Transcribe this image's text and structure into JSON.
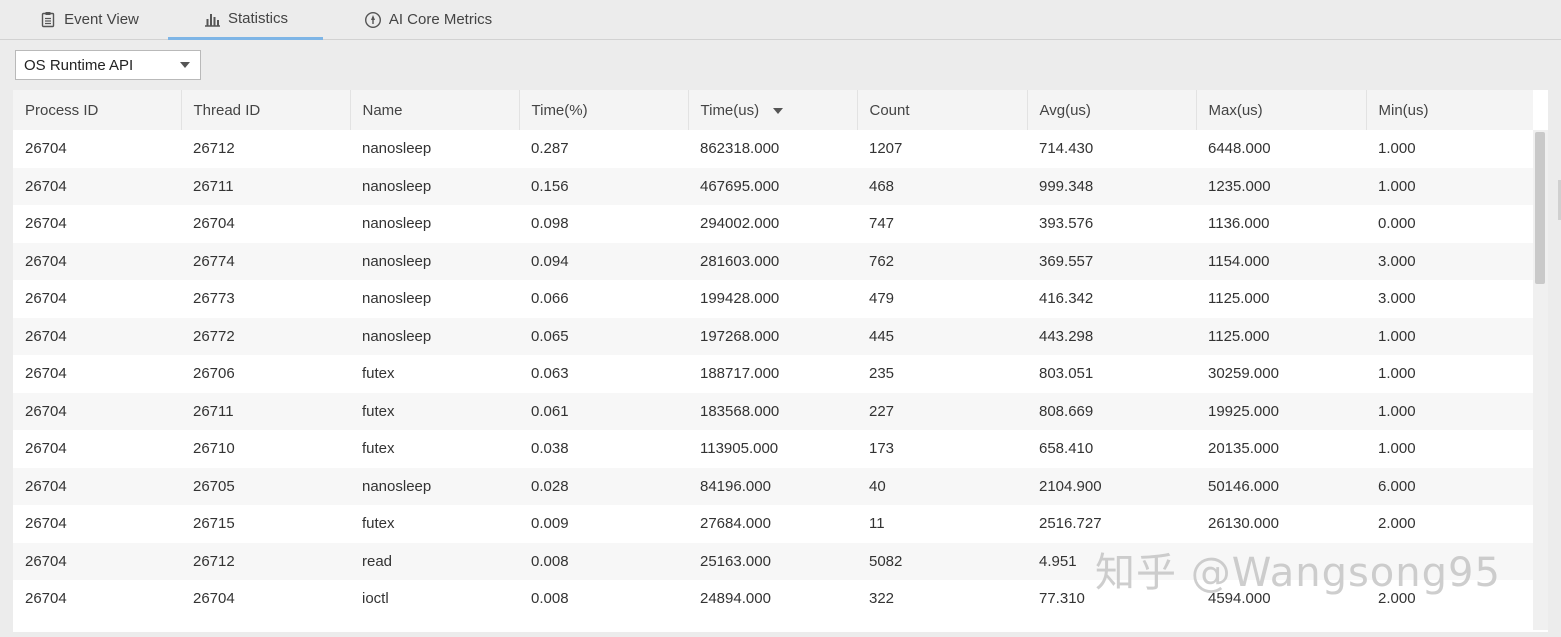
{
  "tabs": [
    {
      "label": "Event View",
      "icon": "clipboard-icon",
      "active": false
    },
    {
      "label": "Statistics",
      "icon": "bar-chart-icon",
      "active": true
    },
    {
      "label": "AI Core Metrics",
      "icon": "gauge-icon",
      "active": false
    }
  ],
  "filter": {
    "selected": "OS Runtime API"
  },
  "table": {
    "columns": [
      "Process ID",
      "Thread ID",
      "Name",
      "Time(%)",
      "Time(us)",
      "Count",
      "Avg(us)",
      "Max(us)",
      "Min(us)"
    ],
    "sorted_column": "Time(us)",
    "rows": [
      [
        "26704",
        "26712",
        "nanosleep",
        "0.287",
        "862318.000",
        "1207",
        "714.430",
        "6448.000",
        "1.000"
      ],
      [
        "26704",
        "26711",
        "nanosleep",
        "0.156",
        "467695.000",
        "468",
        "999.348",
        "1235.000",
        "1.000"
      ],
      [
        "26704",
        "26704",
        "nanosleep",
        "0.098",
        "294002.000",
        "747",
        "393.576",
        "1136.000",
        "0.000"
      ],
      [
        "26704",
        "26774",
        "nanosleep",
        "0.094",
        "281603.000",
        "762",
        "369.557",
        "1154.000",
        "3.000"
      ],
      [
        "26704",
        "26773",
        "nanosleep",
        "0.066",
        "199428.000",
        "479",
        "416.342",
        "1125.000",
        "3.000"
      ],
      [
        "26704",
        "26772",
        "nanosleep",
        "0.065",
        "197268.000",
        "445",
        "443.298",
        "1125.000",
        "1.000"
      ],
      [
        "26704",
        "26706",
        "futex",
        "0.063",
        "188717.000",
        "235",
        "803.051",
        "30259.000",
        "1.000"
      ],
      [
        "26704",
        "26711",
        "futex",
        "0.061",
        "183568.000",
        "227",
        "808.669",
        "19925.000",
        "1.000"
      ],
      [
        "26704",
        "26710",
        "futex",
        "0.038",
        "113905.000",
        "173",
        "658.410",
        "20135.000",
        "1.000"
      ],
      [
        "26704",
        "26705",
        "nanosleep",
        "0.028",
        "84196.000",
        "40",
        "2104.900",
        "50146.000",
        "6.000"
      ],
      [
        "26704",
        "26715",
        "futex",
        "0.009",
        "27684.000",
        "11",
        "2516.727",
        "26130.000",
        "2.000"
      ],
      [
        "26704",
        "26712",
        "read",
        "0.008",
        "25163.000",
        "5082",
        "4.951",
        "",
        ""
      ],
      [
        "26704",
        "26704",
        "ioctl",
        "0.008",
        "24894.000",
        "322",
        "77.310",
        "4594.000",
        "2.000"
      ]
    ]
  },
  "watermark": "知乎 @Wangsong95"
}
